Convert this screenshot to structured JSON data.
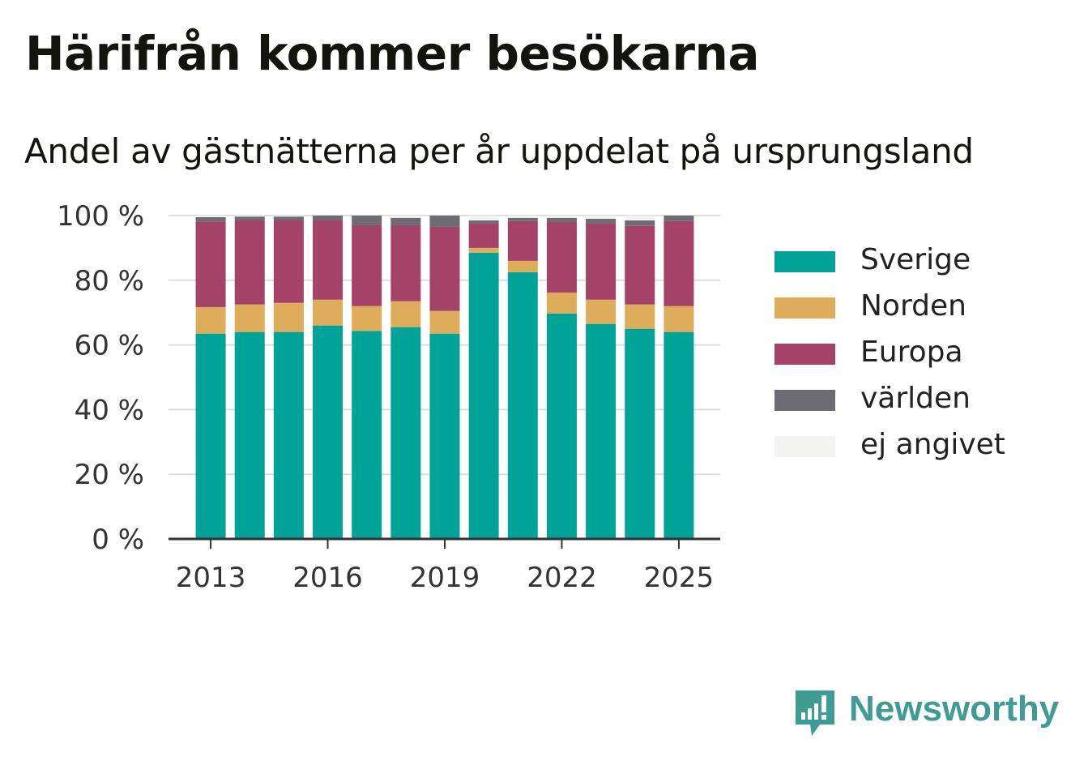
{
  "header": {
    "title": "Härifrån kommer besökarna",
    "subtitle": "Andel av gästnätterna per år uppdelat på ursprungsland"
  },
  "chart_data": {
    "type": "bar",
    "stacked": true,
    "categories": [
      "2013",
      "2014",
      "2015",
      "2016",
      "2017",
      "2018",
      "2019",
      "2020",
      "2021",
      "2022",
      "2023",
      "2024",
      "2025"
    ],
    "x_tick_labels": [
      "2013",
      "2016",
      "2019",
      "2022",
      "2025"
    ],
    "y_tick_labels": [
      "0 %",
      "20 %",
      "40 %",
      "60 %",
      "80 %",
      "100 %"
    ],
    "ylim": [
      0,
      100
    ],
    "grid": true,
    "legend_position": "right",
    "series": [
      {
        "name": "Sverige",
        "color": "#00a398",
        "values": [
          63.5,
          64.0,
          64.0,
          66.0,
          64.3,
          65.5,
          63.5,
          88.5,
          82.5,
          69.7,
          66.5,
          65.0,
          64.0
        ]
      },
      {
        "name": "Norden",
        "color": "#deac5a",
        "values": [
          8.2,
          8.5,
          9.0,
          8.0,
          7.7,
          8.0,
          7.0,
          1.5,
          3.5,
          6.5,
          7.5,
          7.5,
          8.0
        ]
      },
      {
        "name": "Europa",
        "color": "#a54268",
        "values": [
          26.5,
          26.0,
          25.5,
          24.5,
          25.0,
          23.5,
          26.0,
          7.5,
          12.3,
          21.8,
          23.5,
          24.3,
          26.3
        ]
      },
      {
        "name": "världen",
        "color": "#6c6c72",
        "values": [
          1.3,
          1.2,
          1.2,
          1.5,
          3.0,
          2.3,
          3.5,
          1.0,
          1.0,
          1.3,
          1.5,
          1.7,
          1.7
        ]
      },
      {
        "name": "ej angivet",
        "color": "#f3f3f1",
        "values": [
          0.5,
          0.3,
          0.3,
          0.0,
          0.0,
          0.7,
          0.0,
          1.5,
          0.7,
          0.7,
          1.0,
          1.5,
          0.0
        ]
      }
    ]
  },
  "logo": {
    "text": "Newsworthy",
    "icon": "newsworthy-logo-icon",
    "color": "#3f9c93"
  }
}
